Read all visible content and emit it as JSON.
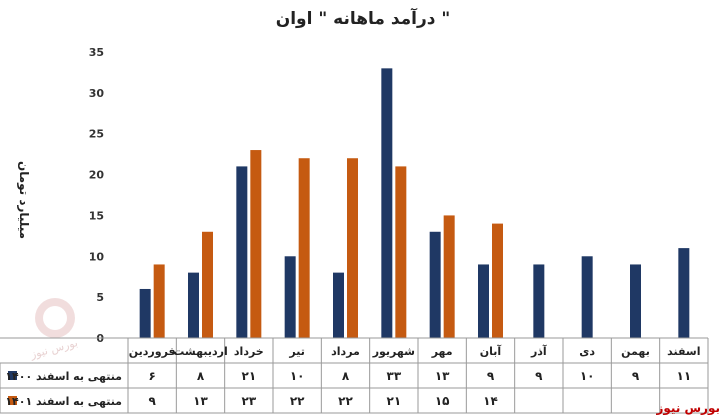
{
  "chart_data": {
    "type": "bar",
    "title": "درآمد ماهانه \" اوان \"",
    "ylabel": "میلیارد تومان",
    "ylim": [
      0,
      35
    ],
    "yticks": [
      "0",
      "5",
      "10",
      "15",
      "20",
      "25",
      "30",
      "35"
    ],
    "grid": false,
    "legend": "bottom-table",
    "categories": [
      "فروردین",
      "اردیبهشت",
      "خرداد",
      "تیر",
      "مرداد",
      "شهریور",
      "مهر",
      "آبان",
      "آذر",
      "دی",
      "بهمن",
      "اسفند"
    ],
    "series": [
      {
        "name": "منتهی به اسفند ۱۴۰۰",
        "color": "#1f3864",
        "values": [
          6,
          8,
          21,
          10,
          8,
          33,
          13,
          9,
          9,
          10,
          9,
          11
        ],
        "labels": [
          "۶",
          "۸",
          "۲۱",
          "۱۰",
          "۸",
          "۳۳",
          "۱۳",
          "۹",
          "۹",
          "۱۰",
          "۹",
          "۱۱"
        ]
      },
      {
        "name": "منتهی به اسفند ۱۴۰۱",
        "color": "#c55a11",
        "values": [
          9,
          13,
          23,
          22,
          22,
          21,
          15,
          14,
          null,
          null,
          null,
          null
        ],
        "labels": [
          "۹",
          "۱۳",
          "۲۳",
          "۲۲",
          "۲۲",
          "۲۱",
          "۱۵",
          "۱۴",
          "",
          "",
          "",
          ""
        ]
      }
    ]
  },
  "brand": {
    "text": "بورس نیوز",
    "color": "#c00000"
  },
  "watermark_text": "بورس نیوز"
}
